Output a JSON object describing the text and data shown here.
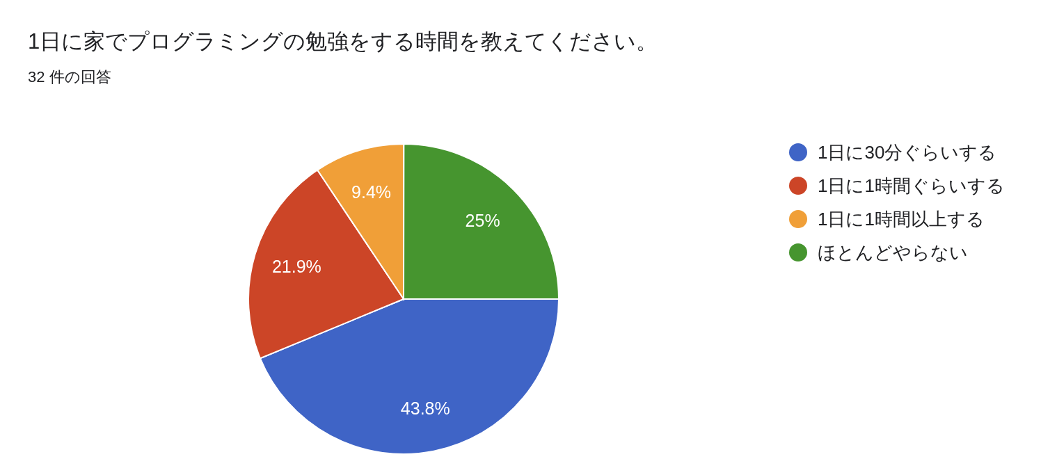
{
  "chart_data": {
    "type": "pie",
    "title": "1日に家でプログラミングの勉強をする時間を教えてください。",
    "subtitle": "32 件の回答",
    "categories": [
      "1日に30分ぐらいする",
      "1日に1時間ぐらいする",
      "1日に1時間以上する",
      "ほとんどやらない"
    ],
    "values": [
      43.8,
      21.9,
      9.4,
      25
    ],
    "colors": [
      "#3f64c6",
      "#cc4527",
      "#f09f38",
      "#46952f"
    ],
    "value_labels": [
      "43.8%",
      "21.9%",
      "9.4%",
      "25%"
    ],
    "legend": "right"
  }
}
